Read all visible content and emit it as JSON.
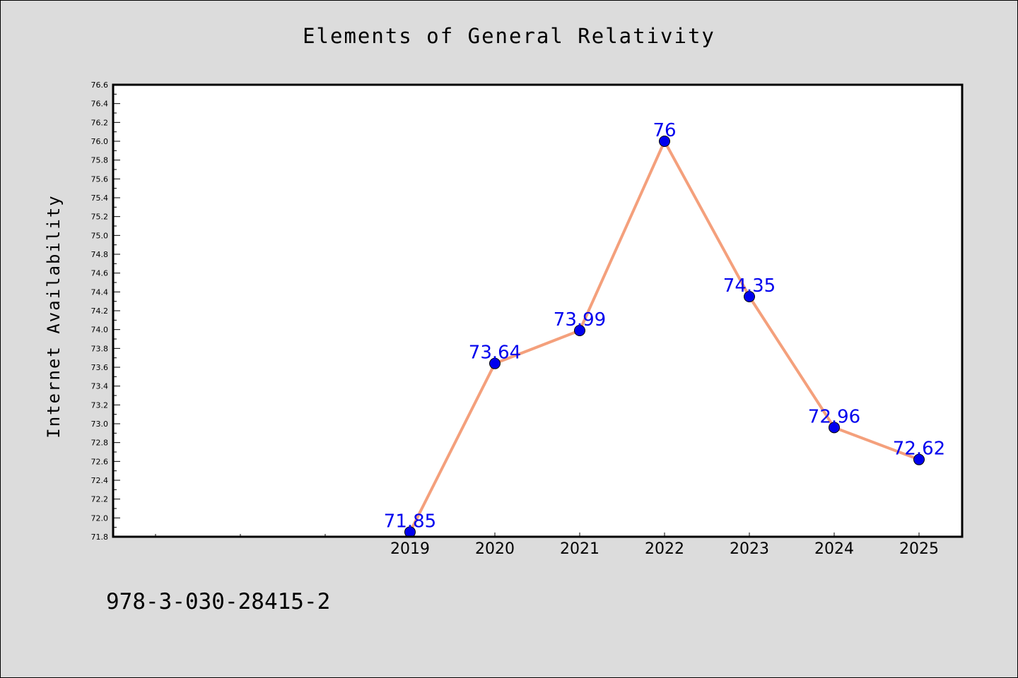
{
  "chart_data": {
    "type": "line",
    "title": "Elements of General Relativity",
    "xlabel": "",
    "ylabel": "Internet Availability",
    "categories": [
      "2019",
      "2020",
      "2021",
      "2022",
      "2023",
      "2024",
      "2025"
    ],
    "series": [
      {
        "values": [
          71.85,
          73.64,
          73.99,
          76,
          74.35,
          72.96,
          72.62
        ],
        "labels": [
          "71.85",
          "73.64",
          "73.99",
          "76",
          "74.35",
          "72.96",
          "72.62"
        ]
      }
    ],
    "ylim": [
      71.8,
      76.6
    ],
    "yticks": [
      "71.8",
      "72.0",
      "72.2",
      "72.4",
      "72.6",
      "72.8",
      "73.0",
      "73.2",
      "73.4",
      "73.6",
      "73.8",
      "74.0",
      "74.2",
      "74.4",
      "74.6",
      "74.8",
      "75.0",
      "75.2",
      "75.4",
      "75.6",
      "75.8",
      "76.0",
      "76.2",
      "76.4",
      "76.6"
    ],
    "grid": false,
    "legend": "none",
    "line_color": "#f4a07c",
    "marker_color": "#0000ee",
    "label_color": "#0000ee"
  },
  "footer": {
    "isbn": "978-3-030-28415-2"
  }
}
